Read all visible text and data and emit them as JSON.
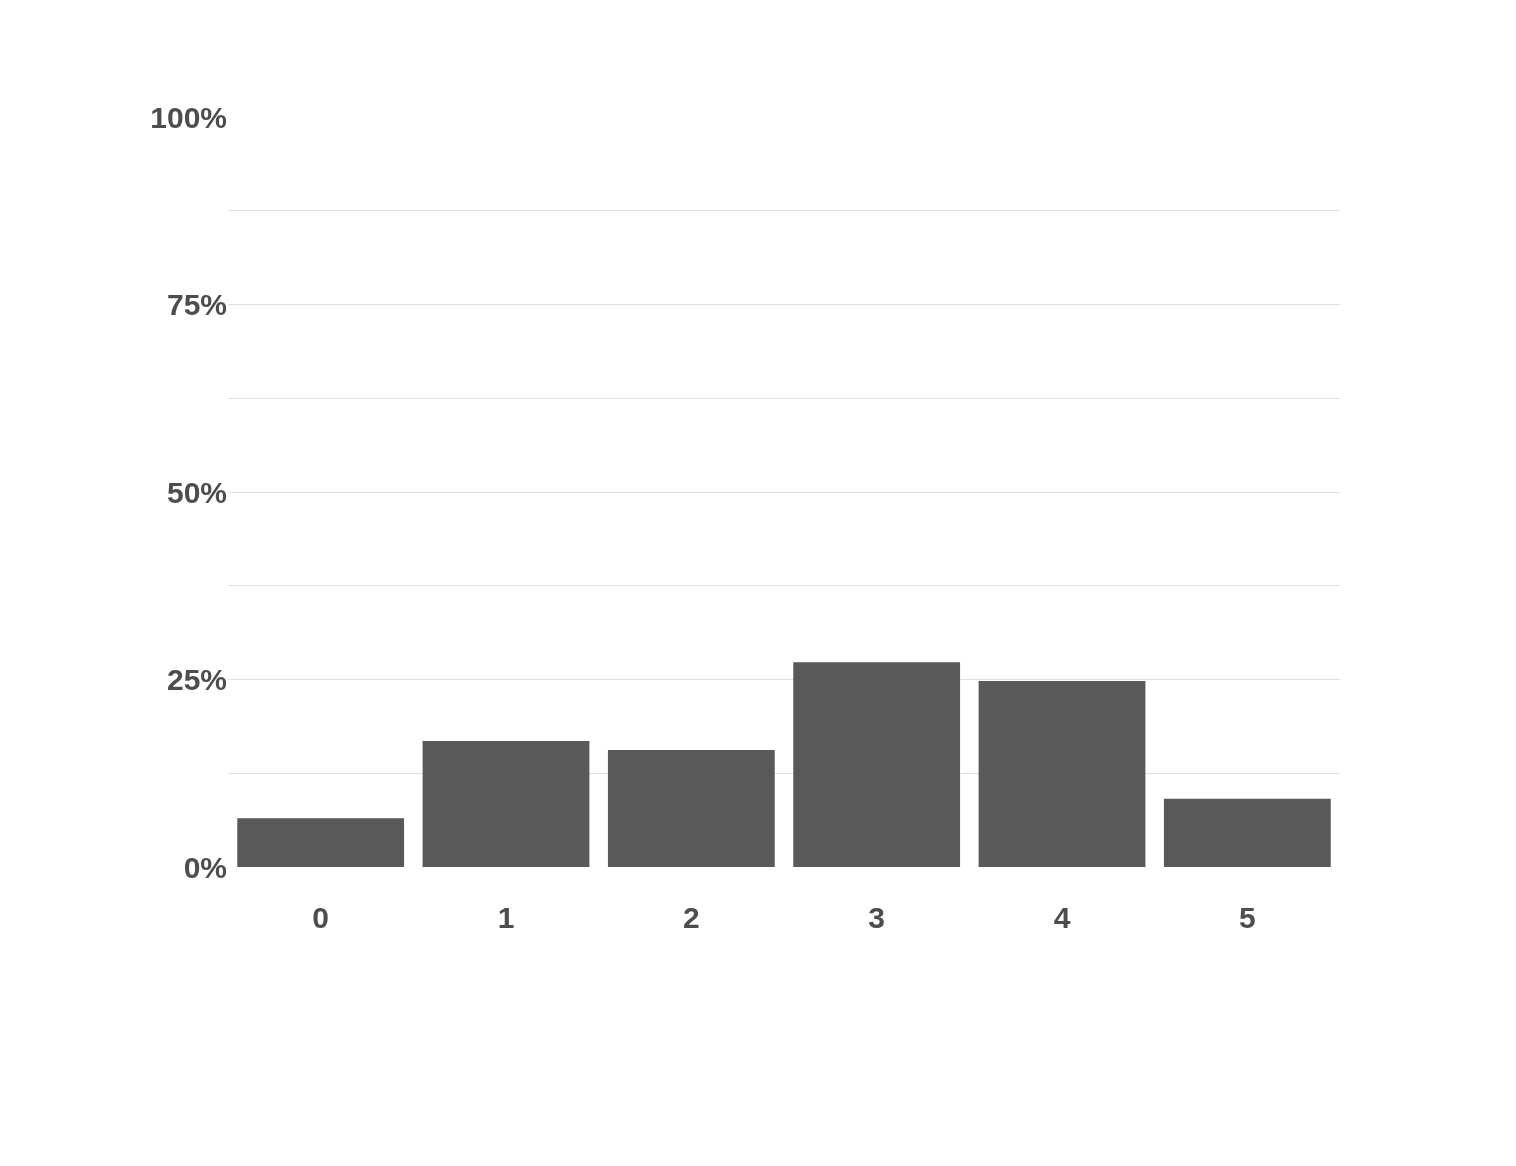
{
  "chart_data": {
    "type": "bar",
    "categories": [
      "0",
      "1",
      "2",
      "3",
      "4",
      "5"
    ],
    "values": [
      6.5,
      16.8,
      15.6,
      27.3,
      24.8,
      9.1
    ],
    "color": "#595959",
    "ylim": [
      0,
      100
    ],
    "yticks": [
      {
        "value": 0,
        "label": "0%"
      },
      {
        "value": 12.5,
        "label": null
      },
      {
        "value": 25,
        "label": "25%"
      },
      {
        "value": 37.5,
        "label": null
      },
      {
        "value": 50,
        "label": "50%"
      },
      {
        "value": 62.5,
        "label": null
      },
      {
        "value": 75,
        "label": "75%"
      },
      {
        "value": 87.5,
        "label": null
      },
      {
        "value": 100,
        "label": "100%"
      }
    ],
    "grid": "y",
    "legend": false
  }
}
